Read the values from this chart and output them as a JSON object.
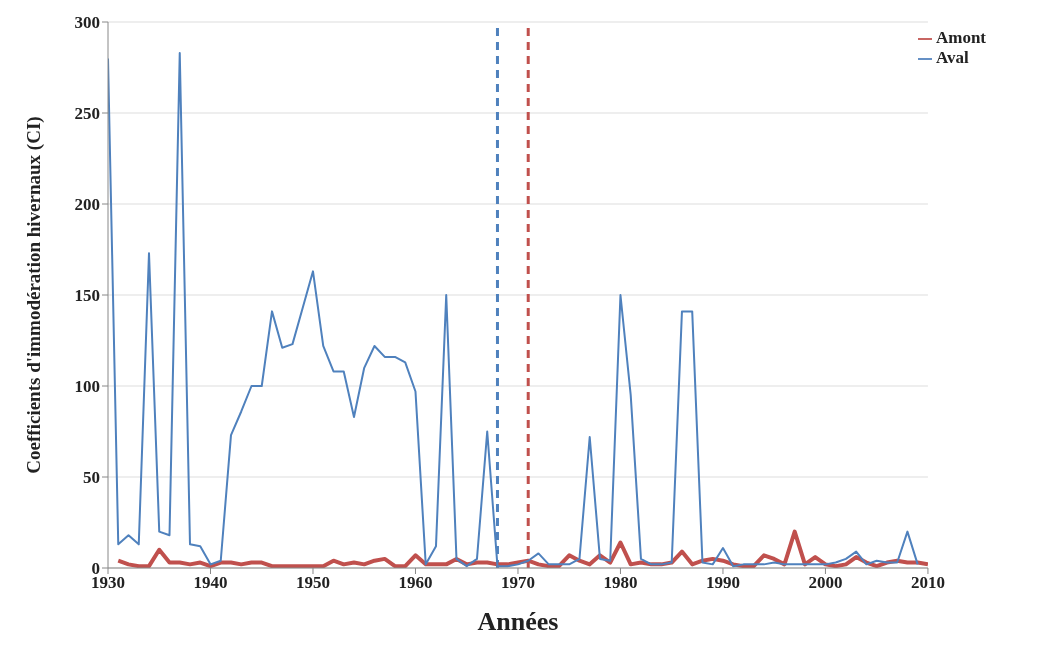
{
  "chart_data": {
    "type": "line",
    "xlabel": "Années",
    "ylabel": "Coefficients d'immodération hivernaux (CI)",
    "xlim": [
      1930,
      2010
    ],
    "xticks": [
      1930,
      1940,
      1950,
      1960,
      1970,
      1980,
      1990,
      2000,
      2010
    ],
    "ylim": [
      0,
      300
    ],
    "yticks": [
      0,
      50,
      100,
      150,
      200,
      250,
      300
    ],
    "grid": "y",
    "legend": "top right",
    "marker": "none",
    "line_style": "solid",
    "series": [
      {
        "name": "Amont",
        "color": "#c0504d",
        "x": [
          1931,
          1932,
          1933,
          1934,
          1935,
          1936,
          1937,
          1938,
          1939,
          1940,
          1941,
          1942,
          1943,
          1944,
          1945,
          1946,
          1947,
          1948,
          1949,
          1950,
          1951,
          1952,
          1953,
          1954,
          1955,
          1956,
          1957,
          1958,
          1959,
          1960,
          1961,
          1962,
          1963,
          1964,
          1965,
          1966,
          1967,
          1968,
          1969,
          1970,
          1971,
          1972,
          1973,
          1974,
          1975,
          1976,
          1977,
          1978,
          1979,
          1980,
          1981,
          1982,
          1983,
          1984,
          1985,
          1986,
          1987,
          1988,
          1989,
          1990,
          1991,
          1992,
          1993,
          1994,
          1995,
          1996,
          1997,
          1998,
          1999,
          2000,
          2001,
          2002,
          2003,
          2004,
          2005,
          2006,
          2007,
          2008,
          2009,
          2010
        ],
        "values": [
          4,
          2,
          1,
          1,
          10,
          3,
          3,
          2,
          3,
          1,
          3,
          3,
          2,
          3,
          3,
          1,
          1,
          1,
          1,
          1,
          1,
          4,
          2,
          3,
          2,
          4,
          5,
          1,
          1,
          7,
          2,
          2,
          2,
          5,
          2,
          3,
          3,
          2,
          2,
          3,
          4,
          2,
          1,
          1,
          7,
          4,
          2,
          7,
          3,
          14,
          2,
          3,
          2,
          2,
          3,
          9,
          2,
          4,
          5,
          4,
          2,
          1,
          1,
          7,
          5,
          2,
          20,
          2,
          6,
          2,
          1,
          2,
          6,
          3,
          1,
          3,
          4,
          3,
          3,
          2
        ]
      },
      {
        "name": "Aval",
        "color": "#4f81bd",
        "x": [
          1930,
          1931,
          1932,
          1933,
          1934,
          1935,
          1936,
          1937,
          1938,
          1939,
          1940,
          1941,
          1942,
          1943,
          1944,
          1945,
          1946,
          1947,
          1948,
          1949,
          1950,
          1951,
          1952,
          1953,
          1954,
          1955,
          1956,
          1957,
          1958,
          1959,
          1960,
          1961,
          1962,
          1963,
          1964,
          1965,
          1966,
          1967,
          1968,
          1969,
          1970,
          1971,
          1972,
          1973,
          1974,
          1975,
          1976,
          1977,
          1978,
          1979,
          1980,
          1981,
          1982,
          1983,
          1984,
          1985,
          1986,
          1987,
          1988,
          1989,
          1990,
          1991,
          1992,
          1993,
          1994,
          1995,
          1996,
          1997,
          1998,
          1999,
          2000,
          2001,
          2002,
          2003,
          2004,
          2005,
          2006,
          2007,
          2008,
          2009
        ],
        "values": [
          280,
          13,
          18,
          13,
          173,
          20,
          18,
          283,
          13,
          12,
          2,
          4,
          73,
          86,
          100,
          100,
          141,
          121,
          123,
          143,
          163,
          122,
          108,
          108,
          83,
          110,
          122,
          116,
          116,
          113,
          97,
          2,
          12,
          150,
          5,
          1,
          5,
          75,
          1,
          1,
          2,
          4,
          8,
          2,
          2,
          2,
          5,
          72,
          5,
          4,
          150,
          95,
          5,
          2,
          2,
          3,
          141,
          141,
          3,
          2,
          11,
          1,
          2,
          2,
          2,
          3,
          2,
          2,
          2,
          2,
          2,
          3,
          5,
          9,
          2,
          4,
          3,
          3,
          20,
          2
        ]
      }
    ],
    "ref_lines": [
      {
        "axis": "x",
        "value": 1968,
        "color": "#4f81bd",
        "line_style": "dashed"
      },
      {
        "axis": "x",
        "value": 1971,
        "color": "#c0504d",
        "line_style": "dashed"
      }
    ]
  }
}
